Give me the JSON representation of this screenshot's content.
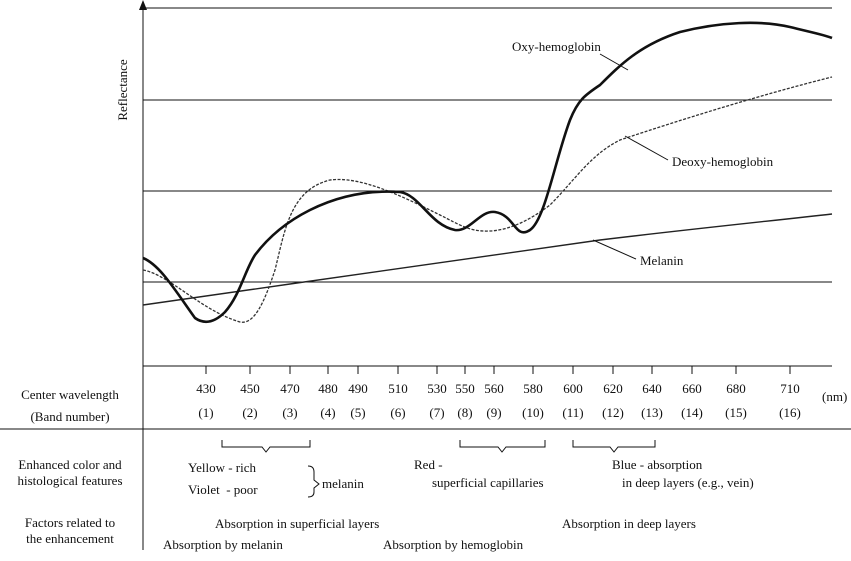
{
  "y_axis_label": "Reflectance",
  "curve_labels": [
    "Oxy-hemoglobin",
    "Deoxy-hemoglobin",
    "Melanin"
  ],
  "wavelength_row": {
    "label": "Center wavelength",
    "unit": "(nm)",
    "values": [
      "430",
      "450",
      "470",
      "480",
      "490",
      "510",
      "530",
      "550",
      "560",
      "580",
      "600",
      "620",
      "640",
      "660",
      "680",
      "710"
    ]
  },
  "band_row": {
    "label": "(Band number)",
    "values": [
      "(1)",
      "(2)",
      "(3)",
      "(4)",
      "(5)",
      "(6)",
      "(7)",
      "(8)",
      "(9)",
      "(10)",
      "(11)",
      "(12)",
      "(13)",
      "(14)",
      "(15)",
      "(16)"
    ]
  },
  "features_row": {
    "label": [
      "Enhanced color and",
      "histological features"
    ],
    "texts": [
      "Yellow - rich",
      "Violet  - poor",
      "melanin",
      "Red -",
      "superficial capillaries",
      "Blue - absorption",
      "in deep layers (e.g., vein)"
    ]
  },
  "factors_row": {
    "label": [
      "Factors related to",
      "the enhancement"
    ],
    "texts": [
      "Absorption in superficial layers",
      "Absorption in deep layers",
      "Absorption by melanin",
      "Absorption by hemoglobin"
    ]
  }
}
